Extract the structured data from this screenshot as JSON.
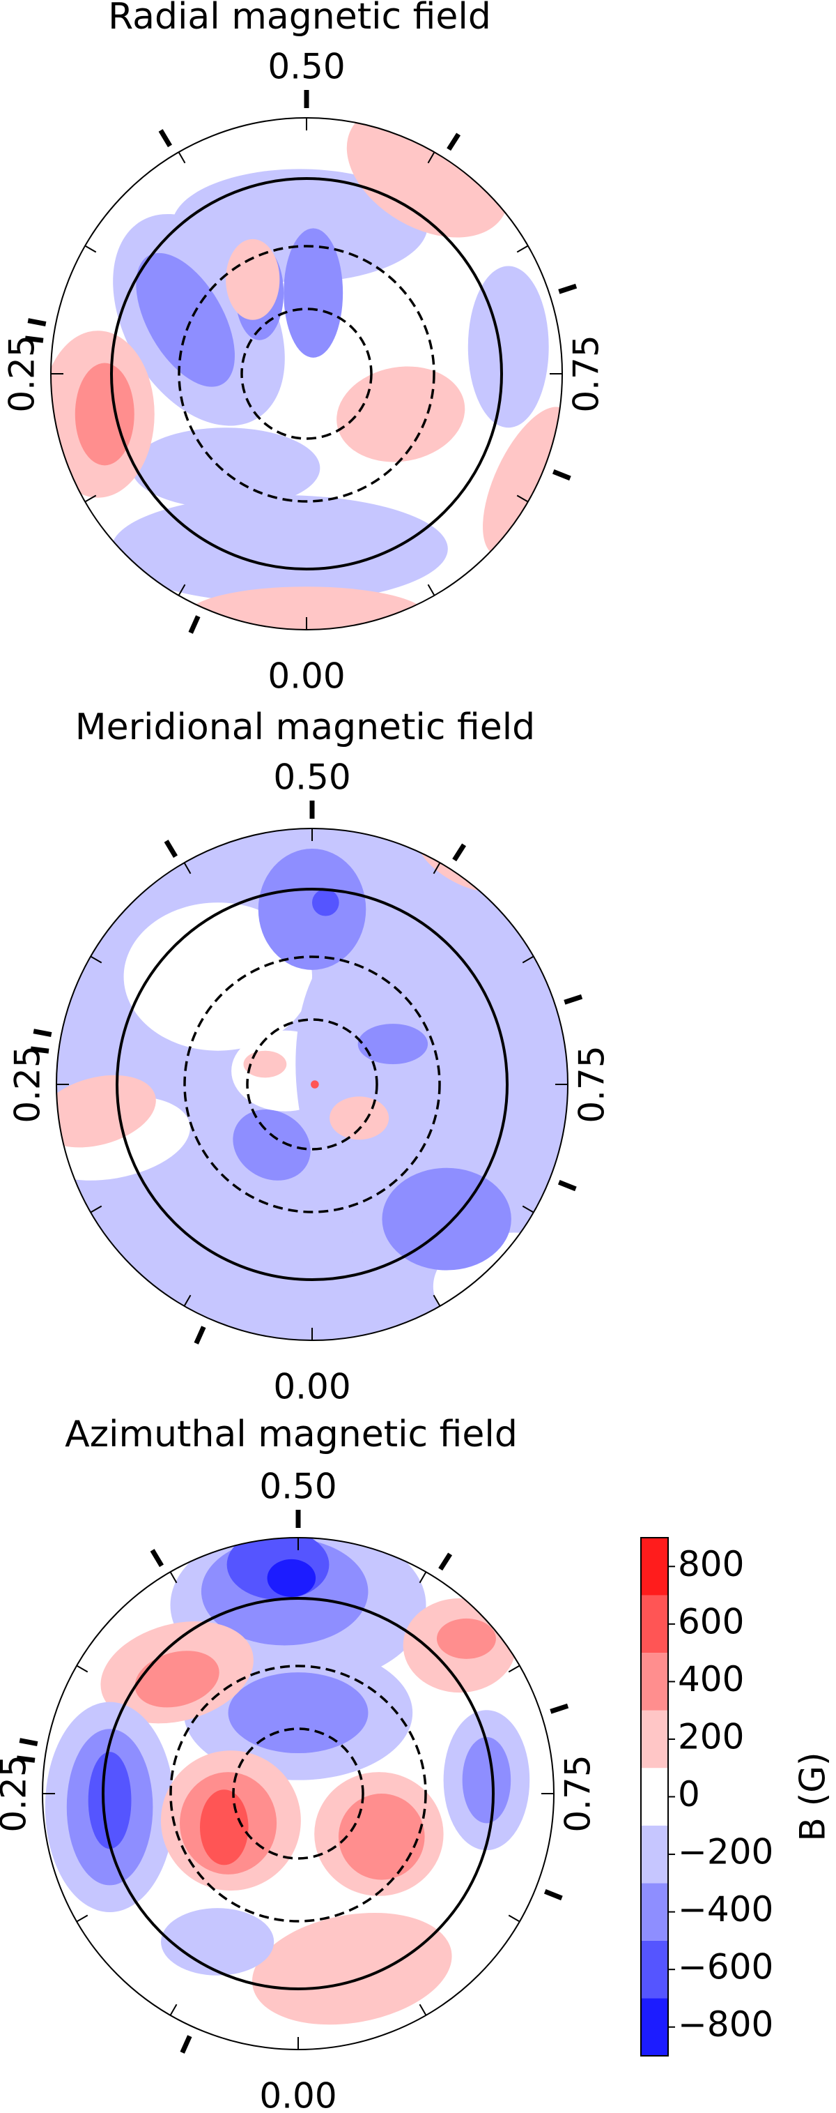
{
  "chart_data": [
    {
      "type": "polar-map",
      "title": "Radial magnetic field",
      "phase_ticks": [
        {
          "value": 0,
          "label": "0.00"
        },
        {
          "value": 0.25,
          "label": "0.25"
        },
        {
          "value": 0.5,
          "label": "0.50"
        },
        {
          "value": 0.75,
          "label": "0.75"
        }
      ],
      "observed_phases": [
        0.067,
        0.27,
        0.28,
        0.414,
        0.5,
        0.59,
        0.7,
        0.81
      ]
    },
    {
      "type": "polar-map",
      "title": "Meridional magnetic field",
      "phase_ticks": [
        {
          "value": 0,
          "label": "0.00"
        },
        {
          "value": 0.25,
          "label": "0.25"
        },
        {
          "value": 0.5,
          "label": "0.50"
        },
        {
          "value": 0.75,
          "label": "0.75"
        }
      ],
      "observed_phases": [
        0.067,
        0.27,
        0.28,
        0.414,
        0.5,
        0.59,
        0.7,
        0.81
      ]
    },
    {
      "type": "polar-map",
      "title": "Azimuthal magnetic field",
      "phase_ticks": [
        {
          "value": 0,
          "label": "0.00"
        },
        {
          "value": 0.25,
          "label": "0.25"
        },
        {
          "value": 0.5,
          "label": "0.50"
        },
        {
          "value": 0.75,
          "label": "0.75"
        }
      ],
      "observed_phases": [
        0.067,
        0.27,
        0.28,
        0.414,
        0.5,
        0.59,
        0.7,
        0.81
      ]
    },
    {
      "type": "colorbar",
      "ylabel": "B (G)",
      "cmap": "bwr",
      "ylim": [
        -900,
        900
      ],
      "yticks": [
        {
          "value": -800,
          "label": "−800"
        },
        {
          "value": -600,
          "label": "−600"
        },
        {
          "value": -400,
          "label": "−400"
        },
        {
          "value": -200,
          "label": "−200"
        },
        0,
        200,
        400,
        600,
        800
      ]
    }
  ]
}
